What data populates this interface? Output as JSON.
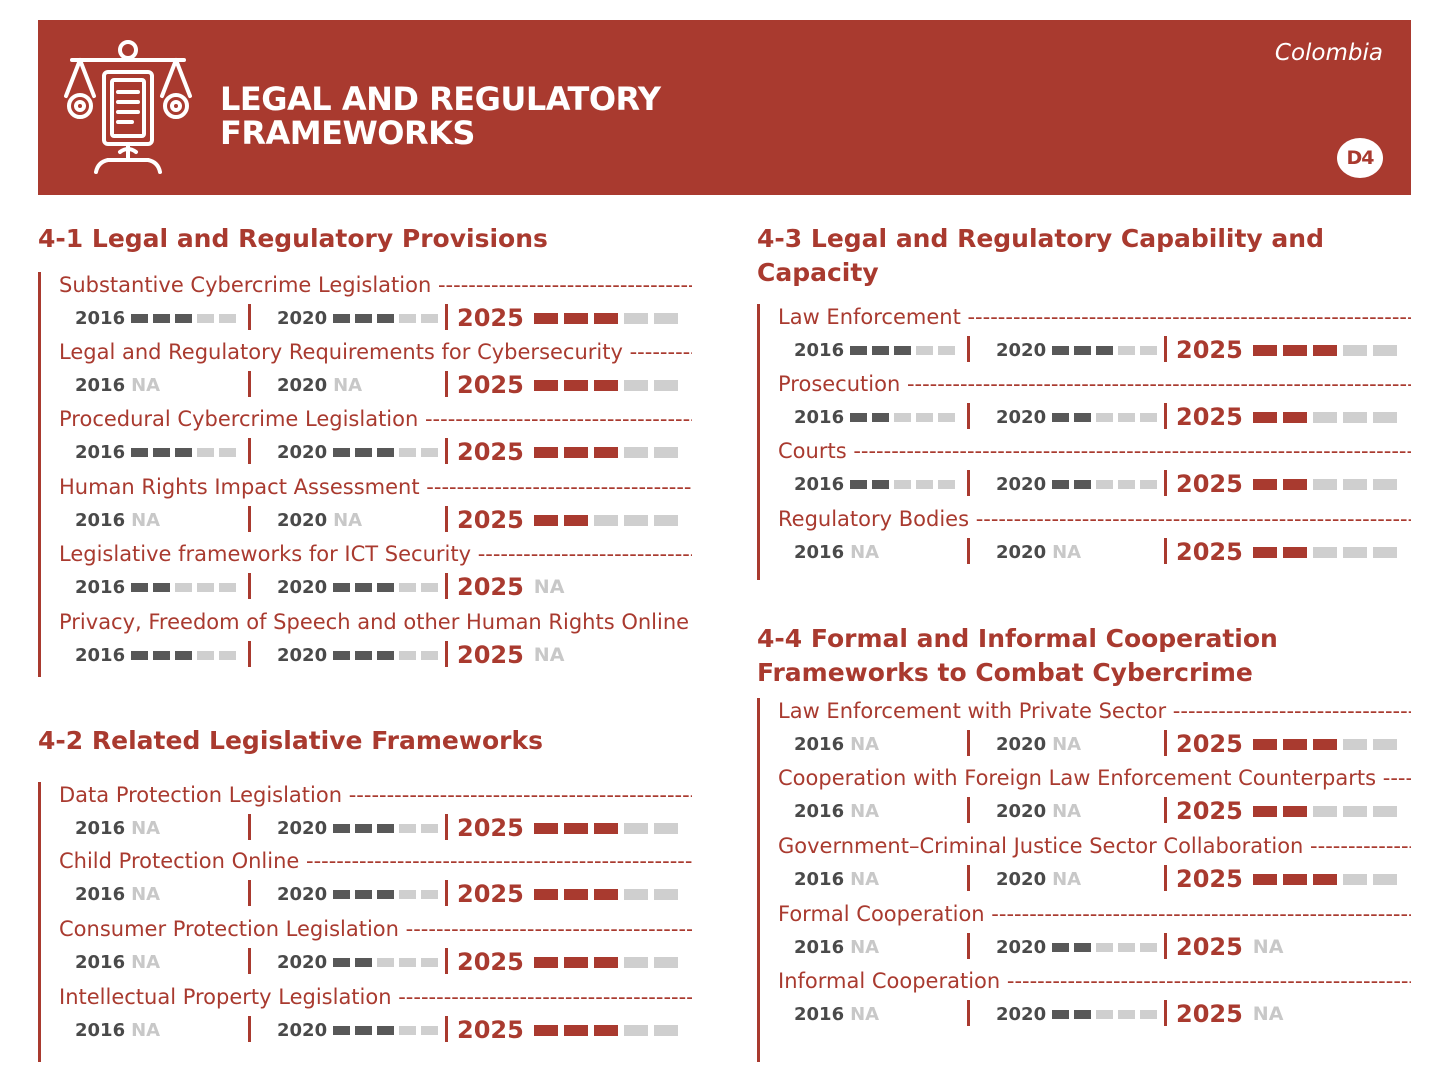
{
  "header": {
    "title_line1": "LEGAL AND REGULATORY",
    "title_line2": "FRAMEWORKS",
    "country": "Colombia",
    "badge": "D4",
    "icon": "legal-scales-document-icon"
  },
  "colors": {
    "brand": "#a93a2f",
    "active_bar_past": "#585858",
    "active_bar_2025": "#a93a2f",
    "inactive_bar": "#cfcfcf",
    "na": "#c8c8c8"
  },
  "score_scale_max": 5,
  "sections": [
    {
      "num": "4-1",
      "title": "Legal and Regulatory Provisions",
      "items": [
        {
          "label": "Substantive Cybercrime Legislation",
          "scores": [
            {
              "year": "2016",
              "value": 3
            },
            {
              "year": "2020",
              "value": 3
            },
            {
              "year": "2025",
              "value": 3
            }
          ]
        },
        {
          "label": "Legal and Regulatory Requirements for Cybersecurity",
          "scores": [
            {
              "year": "2016",
              "value": "NA"
            },
            {
              "year": "2020",
              "value": "NA"
            },
            {
              "year": "2025",
              "value": 3
            }
          ]
        },
        {
          "label": "Procedural Cybercrime Legislation",
          "scores": [
            {
              "year": "2016",
              "value": 3
            },
            {
              "year": "2020",
              "value": 3
            },
            {
              "year": "2025",
              "value": 3
            }
          ]
        },
        {
          "label": "Human Rights Impact Assessment",
          "scores": [
            {
              "year": "2016",
              "value": "NA"
            },
            {
              "year": "2020",
              "value": "NA"
            },
            {
              "year": "2025",
              "value": 2
            }
          ]
        },
        {
          "label": "Legislative frameworks for ICT Security",
          "scores": [
            {
              "year": "2016",
              "value": 2
            },
            {
              "year": "2020",
              "value": 3
            },
            {
              "year": "2025",
              "value": "NA"
            }
          ]
        },
        {
          "label": "Privacy, Freedom of Speech and other Human Rights Online",
          "scores": [
            {
              "year": "2016",
              "value": 3
            },
            {
              "year": "2020",
              "value": 3
            },
            {
              "year": "2025",
              "value": "NA"
            }
          ]
        }
      ]
    },
    {
      "num": "4-2",
      "title": "Related Legislative Frameworks",
      "items": [
        {
          "label": "Data Protection Legislation",
          "scores": [
            {
              "year": "2016",
              "value": "NA"
            },
            {
              "year": "2020",
              "value": 3
            },
            {
              "year": "2025",
              "value": 3
            }
          ]
        },
        {
          "label": "Child Protection Online",
          "scores": [
            {
              "year": "2016",
              "value": "NA"
            },
            {
              "year": "2020",
              "value": 3
            },
            {
              "year": "2025",
              "value": 3
            }
          ]
        },
        {
          "label": "Consumer Protection Legislation",
          "scores": [
            {
              "year": "2016",
              "value": "NA"
            },
            {
              "year": "2020",
              "value": 2
            },
            {
              "year": "2025",
              "value": 3
            }
          ]
        },
        {
          "label": "Intellectual Property Legislation",
          "scores": [
            {
              "year": "2016",
              "value": "NA"
            },
            {
              "year": "2020",
              "value": 3
            },
            {
              "year": "2025",
              "value": 3
            }
          ]
        }
      ]
    },
    {
      "num": "4-3",
      "title": "Legal and Regulatory Capability and Capacity",
      "items": [
        {
          "label": "Law Enforcement",
          "scores": [
            {
              "year": "2016",
              "value": 3
            },
            {
              "year": "2020",
              "value": 3
            },
            {
              "year": "2025",
              "value": 3
            }
          ]
        },
        {
          "label": "Prosecution",
          "scores": [
            {
              "year": "2016",
              "value": 2
            },
            {
              "year": "2020",
              "value": 2
            },
            {
              "year": "2025",
              "value": 2
            }
          ]
        },
        {
          "label": "Courts",
          "scores": [
            {
              "year": "2016",
              "value": 2
            },
            {
              "year": "2020",
              "value": 2
            },
            {
              "year": "2025",
              "value": 2
            }
          ]
        },
        {
          "label": "Regulatory Bodies",
          "scores": [
            {
              "year": "2016",
              "value": "NA"
            },
            {
              "year": "2020",
              "value": "NA"
            },
            {
              "year": "2025",
              "value": 2
            }
          ]
        }
      ]
    },
    {
      "num": "4-4",
      "title": "Formal and Informal Cooperation Frameworks to Combat Cybercrime",
      "items": [
        {
          "label": "Law Enforcement with Private Sector",
          "scores": [
            {
              "year": "2016",
              "value": "NA"
            },
            {
              "year": "2020",
              "value": "NA"
            },
            {
              "year": "2025",
              "value": 3
            }
          ]
        },
        {
          "label": "Cooperation with Foreign Law Enforcement Counterparts",
          "scores": [
            {
              "year": "2016",
              "value": "NA"
            },
            {
              "year": "2020",
              "value": "NA"
            },
            {
              "year": "2025",
              "value": 2
            }
          ]
        },
        {
          "label": "Government–Criminal Justice Sector Collaboration",
          "scores": [
            {
              "year": "2016",
              "value": "NA"
            },
            {
              "year": "2020",
              "value": "NA"
            },
            {
              "year": "2025",
              "value": 3
            }
          ]
        },
        {
          "label": "Formal Cooperation",
          "scores": [
            {
              "year": "2016",
              "value": "NA"
            },
            {
              "year": "2020",
              "value": 2
            },
            {
              "year": "2025",
              "value": "NA"
            }
          ]
        },
        {
          "label": "Informal Cooperation",
          "scores": [
            {
              "year": "2016",
              "value": "NA"
            },
            {
              "year": "2020",
              "value": 2
            },
            {
              "year": "2025",
              "value": "NA"
            }
          ]
        }
      ]
    }
  ]
}
